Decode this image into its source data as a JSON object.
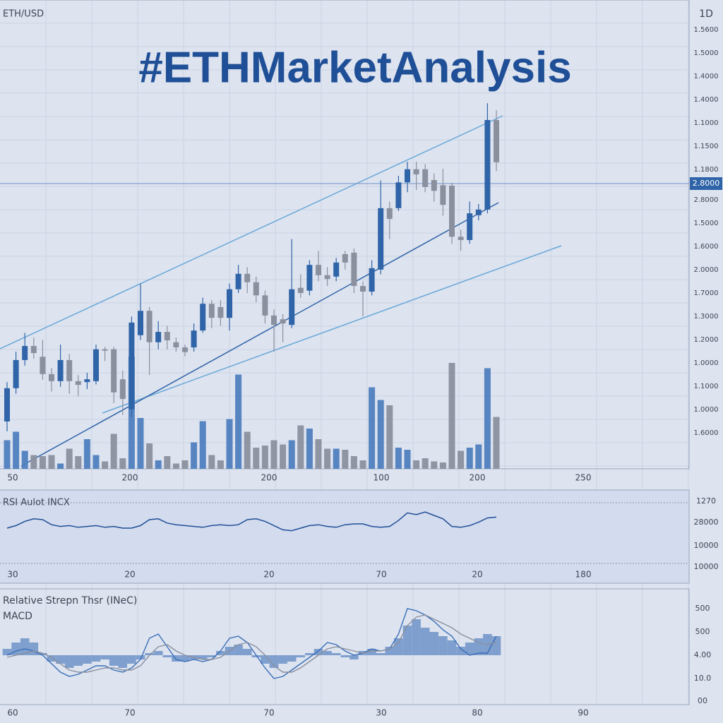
{
  "header": {
    "symbol": "ETH/USD",
    "interval": "1D",
    "title": "#ETHMarketAnalysis"
  },
  "chart_data": [
    {
      "type": "candlestick",
      "ylim": [
        0,
        100
      ],
      "open": [
        10.1,
        17.2,
        23.2,
        26.2,
        23.9,
        20.2,
        18.7,
        23.2,
        18.7,
        18.5,
        18.7,
        25.5,
        25.5,
        19.1,
        12.7,
        28.5,
        33.7,
        27.0,
        29.2,
        27.0,
        25.9,
        25.9,
        29.5,
        35.2,
        34.5,
        32.2,
        38.3,
        41.6,
        39.8,
        37.0,
        32.7,
        31.9,
        30.7,
        38.6,
        38.0,
        43.5,
        41.3,
        41.0,
        45.8,
        46.1,
        39.0,
        37.8,
        42.5,
        55.6,
        55.6,
        61.1,
        63.9,
        63.9,
        61.6,
        60.5,
        60.4,
        49.5,
        48.8,
        54.1,
        55.3,
        74.4
      ],
      "close": [
        17.2,
        23.2,
        26.2,
        24.7,
        20.2,
        18.7,
        23.2,
        18.7,
        17.9,
        19.1,
        25.5,
        25.2,
        16.3,
        14.9,
        31.2,
        33.7,
        27.0,
        29.2,
        27.4,
        25.9,
        24.9,
        29.5,
        35.2,
        32.2,
        32.2,
        38.3,
        41.6,
        39.8,
        37.0,
        32.7,
        30.7,
        31.0,
        38.3,
        37.5,
        43.5,
        41.3,
        40.5,
        44.0,
        44.0,
        39.0,
        37.8,
        42.8,
        55.6,
        53.3,
        61.1,
        63.9,
        62.8,
        60.1,
        59.3,
        56.3,
        49.5,
        48.8,
        54.5,
        55.3,
        74.4,
        65.4
      ],
      "high": [
        18.5,
        25.0,
        29.0,
        28.0,
        27.5,
        21.5,
        26.5,
        24.5,
        20.0,
        20.5,
        26.5,
        26.0,
        26.0,
        21.0,
        32.5,
        39.5,
        34.5,
        31.5,
        30.5,
        28.0,
        26.5,
        31.0,
        36.5,
        36.0,
        36.0,
        39.5,
        43.5,
        43.0,
        41.0,
        38.0,
        34.0,
        33.0,
        49.0,
        41.5,
        44.5,
        46.5,
        43.0,
        45.0,
        46.5,
        47.0,
        40.0,
        44.5,
        61.5,
        57.0,
        62.5,
        65.5,
        65.5,
        65.0,
        63.0,
        64.0,
        61.0,
        51.0,
        57.0,
        56.5,
        78.0,
        76.5
      ],
      "low": [
        8.0,
        16.0,
        22.0,
        23.5,
        19.0,
        16.5,
        17.5,
        16.0,
        15.5,
        17.0,
        18.0,
        23.0,
        14.0,
        11.5,
        11.0,
        27.5,
        20.0,
        25.5,
        25.5,
        25.0,
        24.0,
        25.0,
        29.0,
        30.0,
        30.5,
        29.5,
        37.5,
        37.5,
        35.5,
        31.0,
        25.0,
        27.0,
        30.0,
        36.5,
        37.0,
        40.0,
        39.0,
        40.0,
        42.5,
        37.5,
        32.5,
        37.0,
        41.5,
        49.0,
        55.0,
        59.0,
        59.5,
        59.0,
        57.0,
        54.0,
        48.0,
        46.5,
        48.0,
        53.0,
        54.5,
        63.5
      ],
      "up_color": "#2f64a8",
      "down_color": "#8a909e",
      "volume": {
        "ylim": [
          0,
          120
        ],
        "values": [
          27,
          35,
          17,
          13,
          12,
          13,
          5,
          19,
          12,
          28,
          13,
          7,
          33,
          10,
          106,
          48,
          24,
          8,
          12,
          5,
          8,
          25,
          45,
          13,
          8,
          47,
          89,
          35,
          20,
          22,
          27,
          23,
          27,
          41,
          38,
          28,
          19,
          19,
          18,
          12,
          8,
          77,
          65,
          60,
          20,
          18,
          8,
          10,
          7,
          6,
          100,
          17,
          20,
          23,
          95,
          49
        ]
      },
      "price_labels": [
        "1.5600",
        "1.5000",
        "1.4000",
        "1.4000",
        "1.1000",
        "1.1500",
        "1.1800",
        "2.8000",
        "1.5000",
        "1.6000",
        "2.0000",
        "1.7000",
        "1.3000",
        "1.2000",
        "1.0000",
        "1.1000",
        "1.0000",
        "1.6000"
      ],
      "price_highlight": "2.8000",
      "x_labels": [
        "50",
        "200",
        "200",
        "100",
        "200",
        "250"
      ]
    },
    {
      "type": "line",
      "label": "RSI Aulot INCX",
      "ylim": [
        0,
        100
      ],
      "color": "#1f4f96",
      "values": [
        60,
        63,
        68,
        71,
        70,
        64,
        62,
        63,
        61,
        62,
        63,
        61,
        62,
        60,
        60,
        63,
        70,
        71,
        66,
        64,
        63,
        62,
        61,
        63,
        64,
        63,
        64,
        70,
        71,
        68,
        63,
        58,
        57,
        60,
        63,
        64,
        62,
        61,
        64,
        65,
        65,
        62,
        61,
        62,
        69,
        78,
        76,
        79,
        75,
        71,
        62,
        61,
        63,
        67,
        72,
        73
      ],
      "right_labels": [
        "1270",
        "28000",
        "10000",
        "10000"
      ],
      "x_labels": [
        "30",
        "20",
        "20",
        "70",
        "20",
        "180"
      ]
    },
    {
      "type": "macd",
      "labels": [
        "Relative Strepn Thsr (INeC)",
        "MACD"
      ],
      "ylim": [
        -20,
        20
      ],
      "histogram": [
        3,
        6,
        8,
        6,
        1,
        -3,
        -4,
        -6,
        -5,
        -4,
        -3,
        -2,
        -5,
        -6,
        -4,
        -2,
        1,
        2,
        -1,
        -3,
        -3,
        -2,
        -2,
        -1,
        2,
        4,
        5,
        3,
        -1,
        -4,
        -6,
        -4,
        -3,
        -1,
        1,
        3,
        2,
        1,
        -1,
        -2,
        2,
        3,
        1,
        4,
        8,
        14,
        17,
        13,
        11,
        9,
        7,
        4,
        6,
        8,
        10,
        9
      ],
      "macd": [
        0,
        2,
        3,
        2,
        0,
        -4,
        -8,
        -10,
        -9,
        -7,
        -5,
        -5,
        -7,
        -8,
        -6,
        -2,
        8,
        10,
        4,
        -2,
        -3,
        -2,
        -3,
        -2,
        2,
        8,
        9,
        6,
        0,
        -6,
        -11,
        -10,
        -7,
        -4,
        -1,
        2,
        6,
        5,
        2,
        0,
        1,
        3,
        2,
        3,
        10,
        22,
        21,
        19,
        16,
        12,
        9,
        3,
        0,
        1,
        1,
        9
      ],
      "signal": [
        -1,
        0,
        1,
        2,
        1,
        -1,
        -4,
        -7,
        -8,
        -8,
        -7,
        -6,
        -6,
        -7,
        -7,
        -5,
        0,
        4,
        5,
        2,
        0,
        -1,
        -2,
        -2,
        -1,
        2,
        5,
        6,
        4,
        0,
        -5,
        -8,
        -8,
        -6,
        -3,
        0,
        3,
        4,
        3,
        2,
        1,
        2,
        2,
        3,
        6,
        14,
        18,
        19,
        17,
        15,
        13,
        10,
        8,
        6,
        5,
        6
      ],
      "hist_color": "#6f93c8",
      "macd_color": "#3a6fb8",
      "signal_color": "#8a909e",
      "right_labels": [
        "500",
        "500",
        "4.00",
        "10.0",
        "00"
      ],
      "x_labels": [
        "60",
        "70",
        "70",
        "30",
        "80",
        "90"
      ]
    }
  ]
}
